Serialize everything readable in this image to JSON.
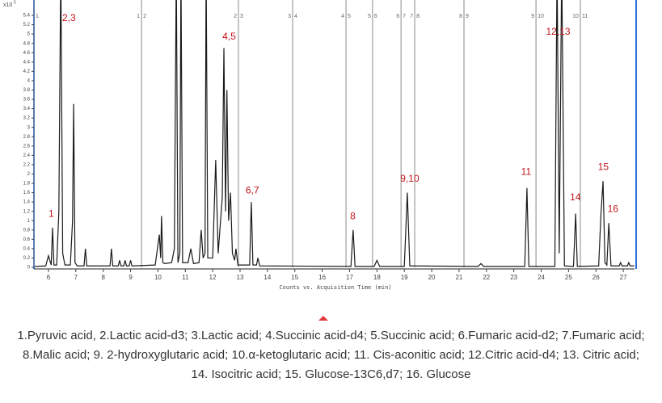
{
  "chart_data": {
    "type": "line",
    "y_scale_base": "x10",
    "y_scale_exponent": "5",
    "x_label": "Counts vs. Acquisition Time (min)",
    "color": "#1a1a1a",
    "xlim": [
      5.47,
      27.41
    ],
    "ylim": [
      0,
      5.7
    ],
    "xticks": [
      6,
      7,
      8,
      9,
      10,
      11,
      12,
      13,
      14,
      15,
      16,
      17,
      18,
      19,
      20,
      21,
      22,
      23,
      24,
      25,
      26,
      27
    ],
    "yticks": [
      0,
      0.2,
      0.4,
      0.6,
      0.8,
      1,
      1.2,
      1.4,
      1.6,
      1.8,
      2,
      2.2,
      2.4,
      2.6,
      2.8,
      3,
      3.2,
      3.4,
      3.6,
      3.8,
      4,
      4.2,
      4.4,
      4.6,
      4.8,
      5,
      5.2,
      5.4
    ],
    "x": [
      5.5,
      5.9,
      6.0,
      6.1,
      6.15,
      6.2,
      6.3,
      6.38,
      6.45,
      6.52,
      6.6,
      6.8,
      6.88,
      6.92,
      6.97,
      7.05,
      7.3,
      7.35,
      7.4,
      8.25,
      8.3,
      8.35,
      8.55,
      8.6,
      8.65,
      8.75,
      8.8,
      8.85,
      8.95,
      9.0,
      9.05,
      9.9,
      10.05,
      10.1,
      10.13,
      10.18,
      10.25,
      10.5,
      10.6,
      10.67,
      10.73,
      10.8,
      10.84,
      10.9,
      11.1,
      11.2,
      11.3,
      11.5,
      11.58,
      11.65,
      11.72,
      11.76,
      11.82,
      12.0,
      12.11,
      12.2,
      12.35,
      12.41,
      12.47,
      12.52,
      12.58,
      12.65,
      12.72,
      12.8,
      12.85,
      12.92,
      13.35,
      13.41,
      13.47,
      13.6,
      13.65,
      13.72,
      17.05,
      17.13,
      17.2,
      17.9,
      18.0,
      18.1,
      19.0,
      19.11,
      19.2,
      21.7,
      21.8,
      21.9,
      23.4,
      23.48,
      23.55,
      24.5,
      24.58,
      24.66,
      24.75,
      24.85,
      25.18,
      25.26,
      25.32,
      26.1,
      26.18,
      26.26,
      26.33,
      26.4,
      26.47,
      26.55,
      26.85,
      26.9,
      26.95,
      27.15,
      27.2,
      27.25,
      27.4
    ],
    "values": [
      0.02,
      0.03,
      0.25,
      0.05,
      0.85,
      0.05,
      0.05,
      1.2,
      6.5,
      0.3,
      0.05,
      0.05,
      1.0,
      3.5,
      0.1,
      0.03,
      0.03,
      0.4,
      0.03,
      0.03,
      0.4,
      0.03,
      0.03,
      0.15,
      0.03,
      0.03,
      0.15,
      0.03,
      0.03,
      0.15,
      0.03,
      0.05,
      0.7,
      0.2,
      1.1,
      0.1,
      0.08,
      0.1,
      0.4,
      6.5,
      0.1,
      0.3,
      6.5,
      0.1,
      0.1,
      0.4,
      0.08,
      0.1,
      0.8,
      0.2,
      0.3,
      6.5,
      0.2,
      0.2,
      2.3,
      0.3,
      1.5,
      4.7,
      1.2,
      3.8,
      1.0,
      1.6,
      0.3,
      0.15,
      0.4,
      0.05,
      0.05,
      1.4,
      0.05,
      0.05,
      0.2,
      0.03,
      0.02,
      0.8,
      0.02,
      0.02,
      0.15,
      0.02,
      0.02,
      1.6,
      0.03,
      0.02,
      0.08,
      0.02,
      0.02,
      1.7,
      0.02,
      0.02,
      6.5,
      0.3,
      6.5,
      0.03,
      0.02,
      1.15,
      0.02,
      0.03,
      1.1,
      1.85,
      0.1,
      0.05,
      0.95,
      0.03,
      0.03,
      0.1,
      0.03,
      0.03,
      0.1,
      0.03,
      0.03
    ],
    "segments": [
      {
        "x": 5.47,
        "right": "1"
      },
      {
        "x": 9.4,
        "left": "1",
        "right": "2"
      },
      {
        "x": 12.94,
        "left": "2",
        "right": "3"
      },
      {
        "x": 14.92,
        "left": "3",
        "right": "4"
      },
      {
        "x": 16.87,
        "left": "4",
        "right": "5"
      },
      {
        "x": 17.84,
        "left": "5",
        "right": "6"
      },
      {
        "x": 18.88,
        "left": "6",
        "right": "7"
      },
      {
        "x": 19.38,
        "left": "7",
        "right": "8"
      },
      {
        "x": 21.18,
        "left": "8",
        "right": "9"
      },
      {
        "x": 23.81,
        "left": "9",
        "right": "10"
      },
      {
        "x": 25.43,
        "left": "10",
        "right": "11"
      }
    ],
    "annotations": [
      {
        "text": "1",
        "x": 6.1,
        "y": 1.0
      },
      {
        "text": "2,3",
        "x": 6.75,
        "y": 5.2
      },
      {
        "text": "4,5",
        "x": 12.6,
        "y": 4.8
      },
      {
        "text": "6,7",
        "x": 13.45,
        "y": 1.5
      },
      {
        "text": "8",
        "x": 17.12,
        "y": 0.95
      },
      {
        "text": "9,10",
        "x": 19.2,
        "y": 1.75
      },
      {
        "text": "11",
        "x": 23.45,
        "y": 1.9
      },
      {
        "text": "12,13",
        "x": 24.62,
        "y": 4.9
      },
      {
        "text": "14",
        "x": 25.25,
        "y": 1.35
      },
      {
        "text": "15",
        "x": 26.27,
        "y": 2.0
      },
      {
        "text": "16",
        "x": 26.62,
        "y": 1.1
      }
    ],
    "caption": "1.Pyruvic acid, 2.Lactic acid-d3; 3.Lactic acid; 4.Succinic acid-d4; 5.Succinic acid; 6.Fumaric acid-d2; 7.Fumaric acid; 8.Malic acid; 9. 2-hydroxyglutaric acid; 10.α-ketoglutaric acid; 11. Cis-aconitic acid; 12.Citric acid-d4; 13. Citric acid; 14. Isocitric acid; 15. Glucose-13C6,d7; 16. Glucose"
  }
}
